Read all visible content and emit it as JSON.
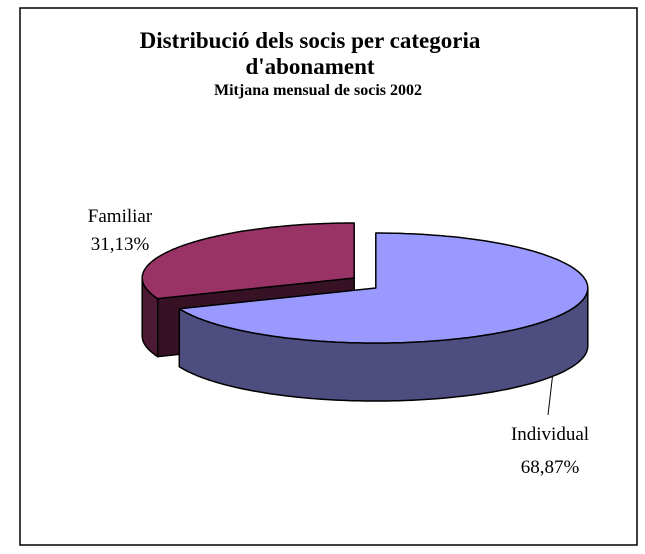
{
  "chart_data": {
    "type": "pie",
    "title": "Distribució dels socis per categoria d'abonament",
    "subtitle": "Mitjana mensual de socis 2002",
    "categories": [
      "Individual",
      "Familiar"
    ],
    "values": [
      68.87,
      31.13
    ],
    "value_labels": [
      "68,87%",
      "31,13%"
    ],
    "colors": [
      "#9999ff",
      "#993366"
    ]
  }
}
